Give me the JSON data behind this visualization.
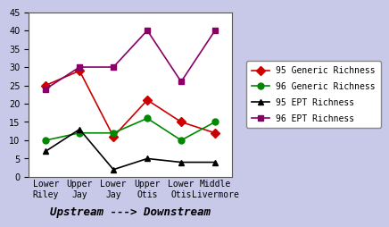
{
  "categories": [
    "Lower\nRiley",
    "Upper\nJay",
    "Lower\nJay",
    "Upper\nOtis",
    "Lower\nOtis",
    "Middle\nLivermore"
  ],
  "series_order": [
    "95 Generic Richness",
    "96 Generic Richness",
    "95 EPT Richness",
    "96 EPT Richness"
  ],
  "series": {
    "95 Generic Richness": {
      "values": [
        25,
        29,
        11,
        21,
        15,
        12
      ],
      "color": "#cc0000",
      "marker": "D",
      "markersize": 5
    },
    "96 Generic Richness": {
      "values": [
        10,
        12,
        12,
        16,
        10,
        15
      ],
      "color": "#008800",
      "marker": "o",
      "markersize": 5
    },
    "95 EPT Richness": {
      "values": [
        7,
        13,
        2,
        5,
        4,
        4
      ],
      "color": "#000000",
      "marker": "^",
      "markersize": 5
    },
    "96 EPT Richness": {
      "values": [
        24,
        30,
        30,
        40,
        26,
        40
      ],
      "color": "#880066",
      "marker": "s",
      "markersize": 5
    }
  },
  "ylim": [
    0,
    45
  ],
  "yticks": [
    0,
    5,
    10,
    15,
    20,
    25,
    30,
    35,
    40,
    45
  ],
  "xlabel": "Upstream ---> Downstream",
  "background_color": "#c8c8e8",
  "plot_bg_color": "#ffffff",
  "legend_facecolor": "#ffffff",
  "tick_fontsize": 7,
  "xlabel_fontsize": 9,
  "legend_fontsize": 7,
  "line_width": 1.2
}
